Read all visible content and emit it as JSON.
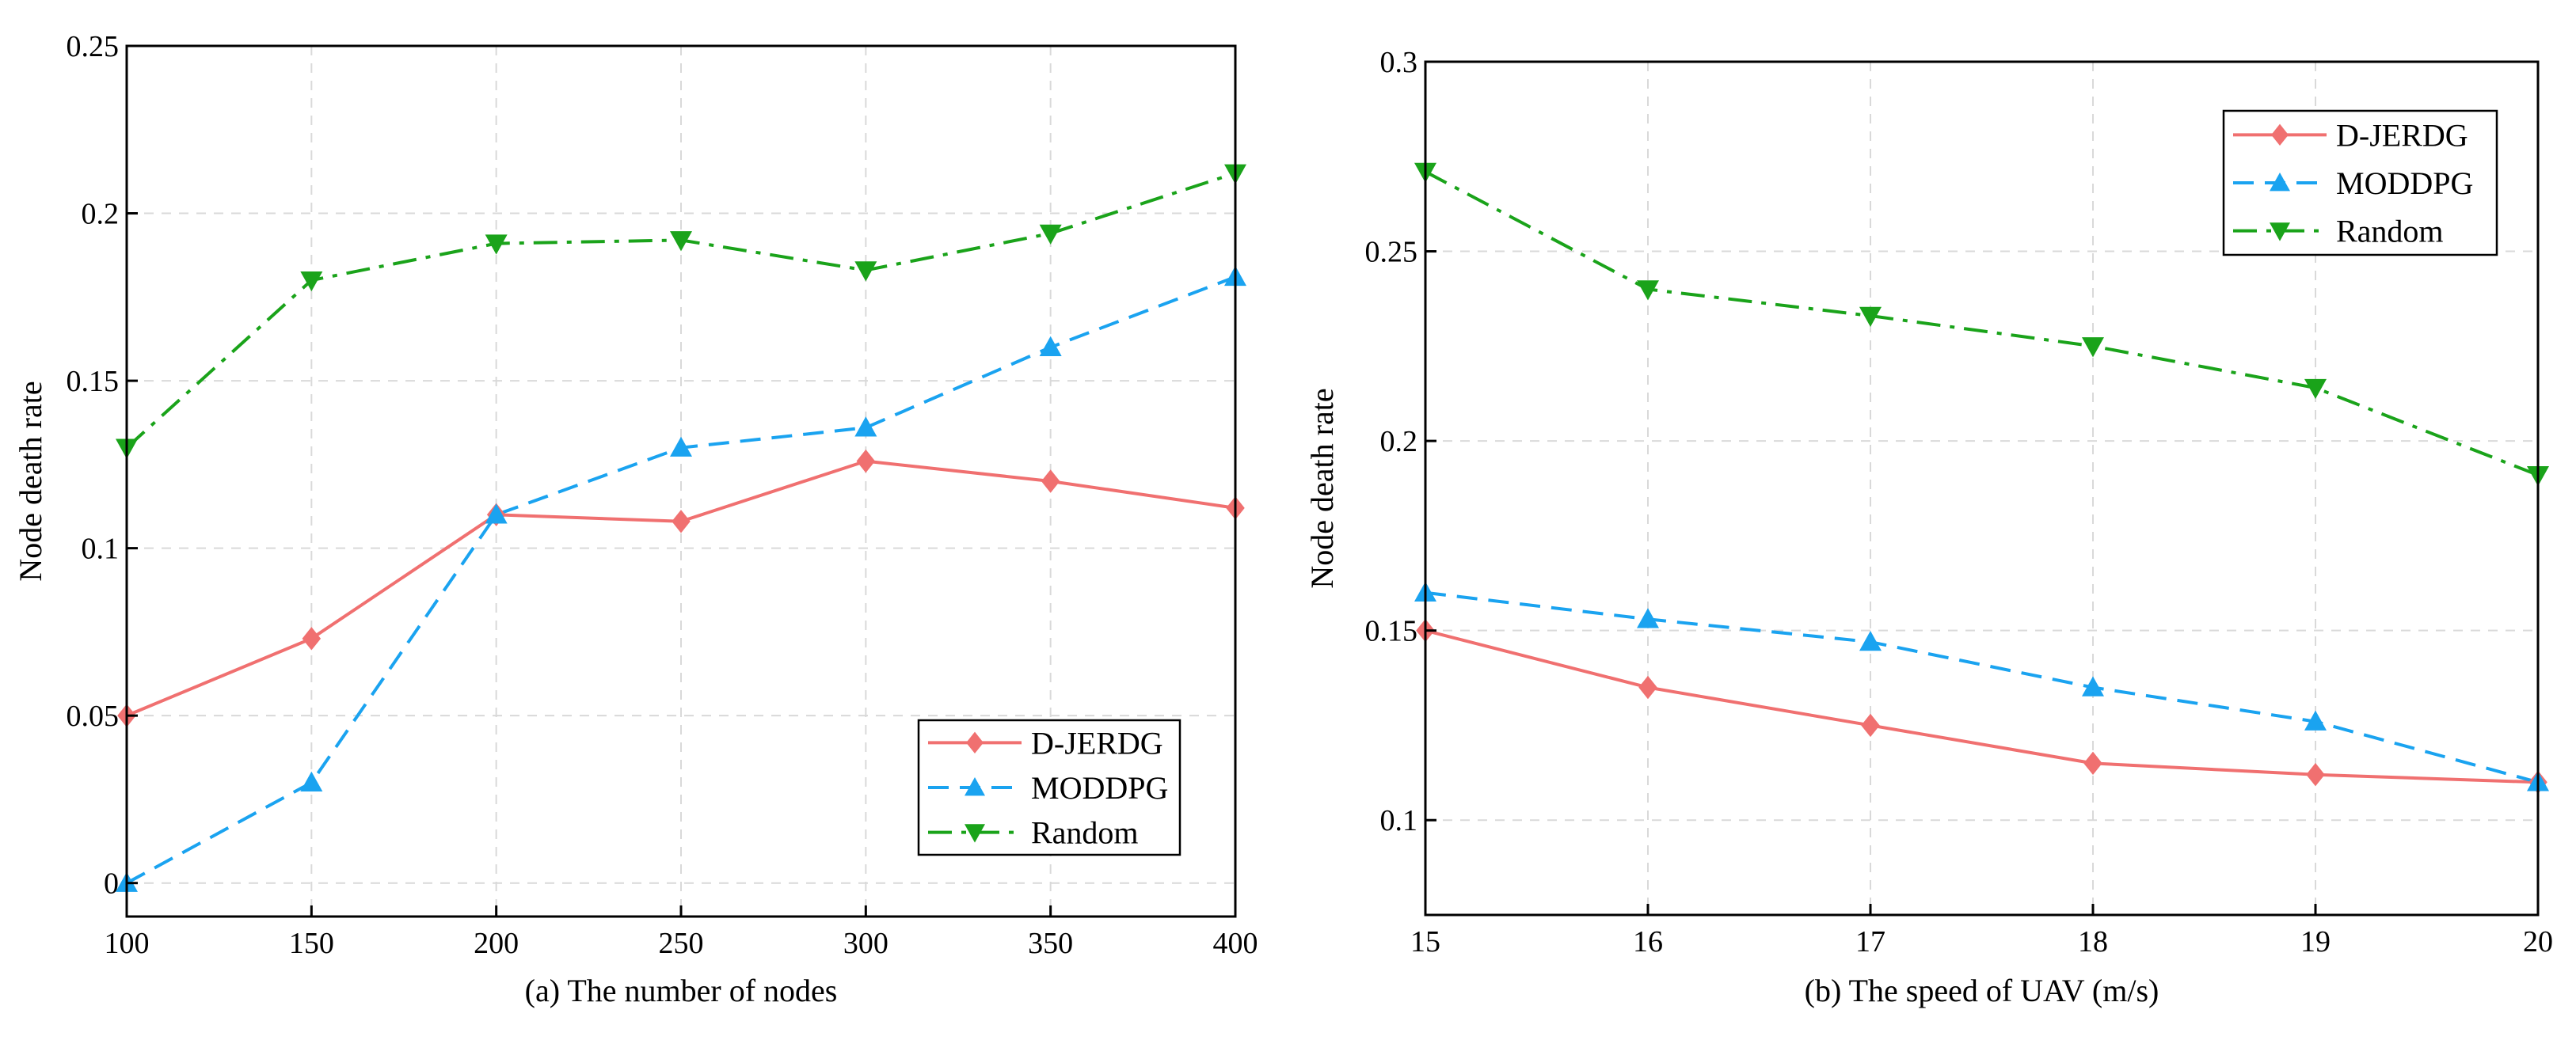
{
  "chart_data": [
    {
      "id": "a",
      "type": "line",
      "title": "",
      "caption": "(a) The number of nodes",
      "xlabel": "",
      "ylabel": "Node death rate",
      "xlim": [
        100,
        400
      ],
      "ylim": [
        -0.01,
        0.25
      ],
      "x": [
        100,
        150,
        200,
        250,
        300,
        350,
        400
      ],
      "x_tick_labels": [
        "100",
        "150",
        "200",
        "250",
        "300",
        "350",
        "400"
      ],
      "y_ticks": [
        0,
        0.05,
        0.1,
        0.15,
        0.2,
        0.25
      ],
      "y_tick_labels": [
        "0",
        "0.05",
        "0.1",
        "0.15",
        "0.2",
        "0.25"
      ],
      "grid": true,
      "legend_position": "bottom-right",
      "series": [
        {
          "name": "D-JERDG",
          "values": [
            0.05,
            0.073,
            0.11,
            0.108,
            0.126,
            0.12,
            0.112
          ],
          "color": "#f07070",
          "marker": "diamond",
          "dash": "solid"
        },
        {
          "name": "MODDPG",
          "values": [
            0.0,
            0.03,
            0.11,
            0.13,
            0.136,
            0.16,
            0.181
          ],
          "color": "#1aa3f0",
          "marker": "triangle-up",
          "dash": "dashed"
        },
        {
          "name": "Random",
          "values": [
            0.13,
            0.18,
            0.191,
            0.192,
            0.183,
            0.194,
            0.212
          ],
          "color": "#1aa31a",
          "marker": "triangle-down",
          "dash": "dashdot"
        }
      ]
    },
    {
      "id": "b",
      "type": "line",
      "title": "",
      "caption": "(b) The speed of UAV (m/s)",
      "xlabel": "",
      "ylabel": "Node death rate",
      "xlim": [
        15,
        20
      ],
      "ylim": [
        0.075,
        0.3
      ],
      "x": [
        15,
        16,
        17,
        18,
        19,
        20
      ],
      "x_tick_labels": [
        "15",
        "16",
        "17",
        "18",
        "19",
        "20"
      ],
      "y_ticks": [
        0.1,
        0.15,
        0.2,
        0.25,
        0.3
      ],
      "y_tick_labels": [
        "0.1",
        "0.15",
        "0.2",
        "0.25",
        "0.3"
      ],
      "grid": true,
      "legend_position": "top-right",
      "series": [
        {
          "name": "D-JERDG",
          "values": [
            0.15,
            0.135,
            0.125,
            0.115,
            0.112,
            0.11
          ],
          "color": "#f07070",
          "marker": "diamond",
          "dash": "solid"
        },
        {
          "name": "MODDPG",
          "values": [
            0.16,
            0.153,
            0.147,
            0.135,
            0.126,
            0.11
          ],
          "color": "#1aa3f0",
          "marker": "triangle-up",
          "dash": "dashed"
        },
        {
          "name": "Random",
          "values": [
            0.271,
            0.24,
            0.233,
            0.225,
            0.214,
            0.191
          ],
          "color": "#1aa31a",
          "marker": "triangle-down",
          "dash": "dashdot"
        }
      ]
    }
  ]
}
